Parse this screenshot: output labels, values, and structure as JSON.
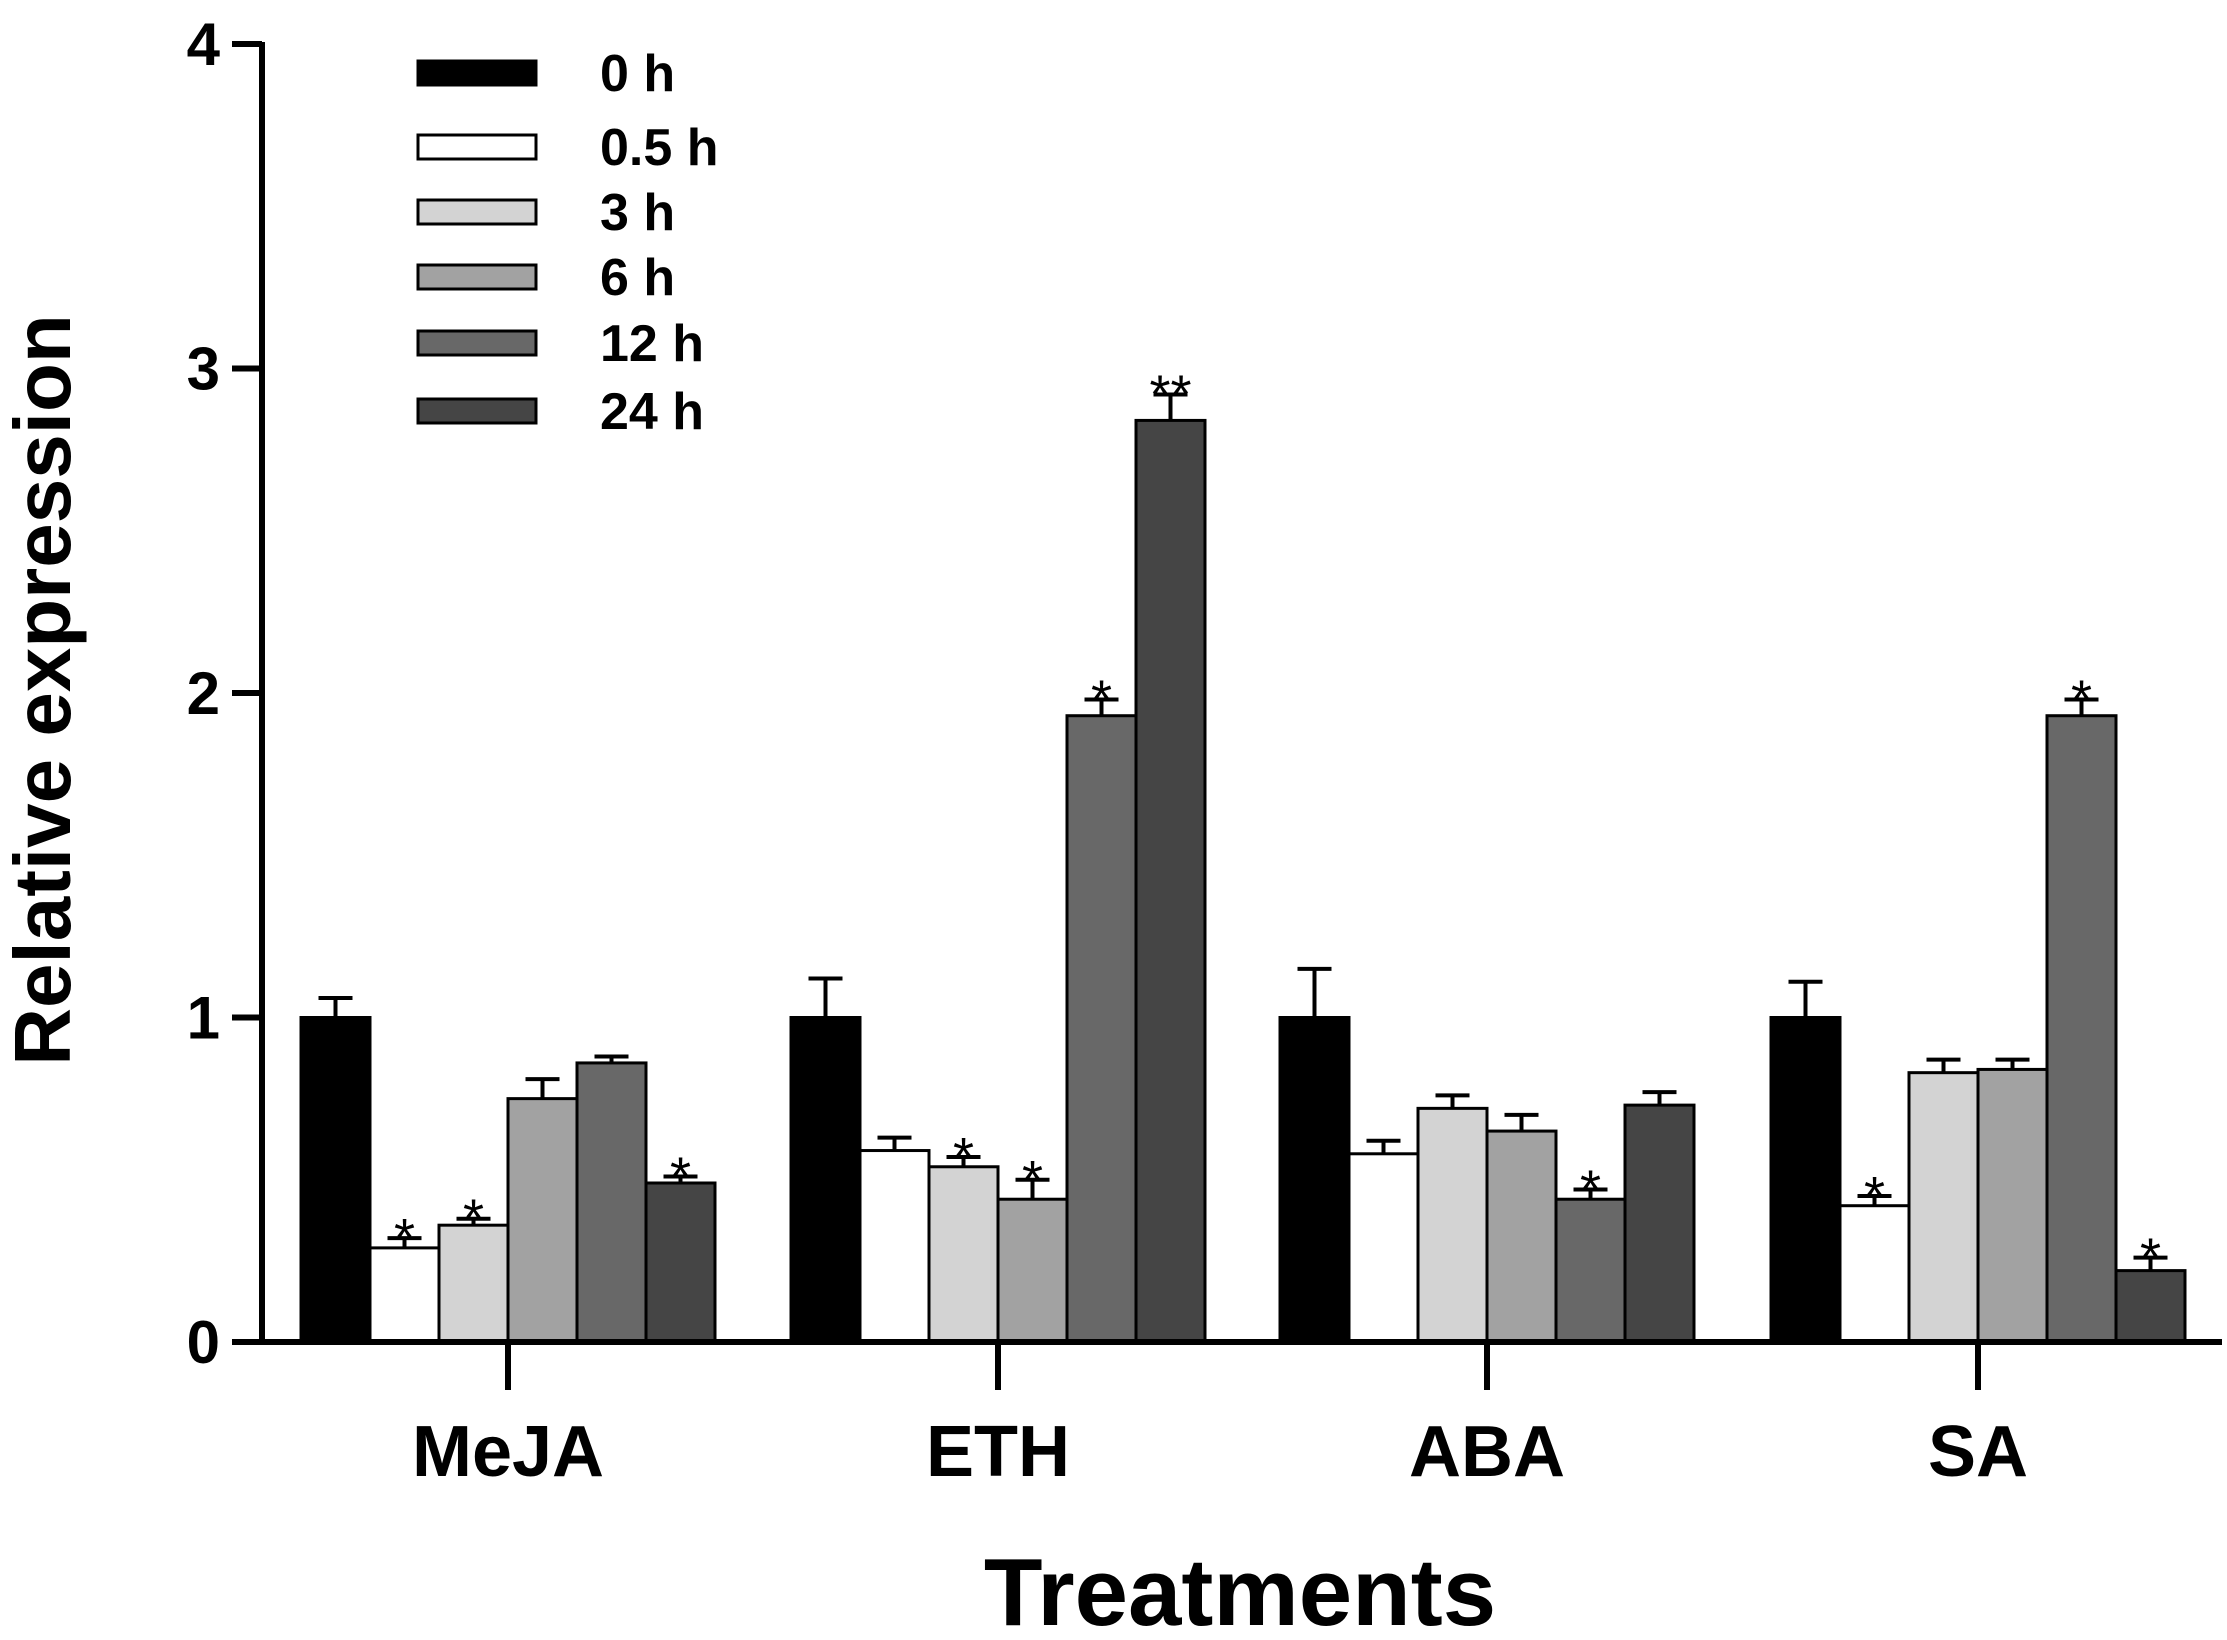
{
  "chart_data": {
    "type": "bar",
    "title": "",
    "xlabel": "Treatments",
    "ylabel": "Relative expression",
    "ylim": [
      0,
      4
    ],
    "yticks": [
      "0",
      "1",
      "2",
      "3",
      "4"
    ],
    "categories": [
      "MeJA",
      "ETH",
      "ABA",
      "SA"
    ],
    "legend_position": "top-left",
    "series": [
      {
        "name": "0 h",
        "color": "#000000",
        "values": [
          1.0,
          1.0,
          1.0,
          1.0
        ],
        "errors": [
          0.06,
          0.12,
          0.15,
          0.11
        ],
        "sig": [
          "",
          "",
          "",
          ""
        ]
      },
      {
        "name": "0.5 h",
        "color": "#ffffff",
        "values": [
          0.29,
          0.59,
          0.58,
          0.42
        ],
        "errors": [
          0.03,
          0.04,
          0.04,
          0.03
        ],
        "sig": [
          "*",
          "",
          "",
          "*"
        ]
      },
      {
        "name": "3 h",
        "color": "#d3d3d3",
        "values": [
          0.36,
          0.54,
          0.72,
          0.83
        ],
        "errors": [
          0.02,
          0.03,
          0.04,
          0.04
        ],
        "sig": [
          "*",
          "*",
          "",
          ""
        ]
      },
      {
        "name": "6 h",
        "color": "#a2a2a2",
        "values": [
          0.75,
          0.44,
          0.65,
          0.84
        ],
        "errors": [
          0.06,
          0.06,
          0.05,
          0.03
        ],
        "sig": [
          "",
          "*",
          "",
          ""
        ]
      },
      {
        "name": "12 h",
        "color": "#686868",
        "values": [
          0.86,
          1.93,
          0.44,
          1.93
        ],
        "errors": [
          0.02,
          0.05,
          0.03,
          0.05
        ],
        "sig": [
          "",
          "*",
          "*",
          "*"
        ]
      },
      {
        "name": "24 h",
        "color": "#454545",
        "values": [
          0.49,
          2.84,
          0.73,
          0.22
        ],
        "errors": [
          0.02,
          0.08,
          0.04,
          0.04
        ],
        "sig": [
          "*",
          "**",
          "",
          "*"
        ]
      }
    ]
  }
}
